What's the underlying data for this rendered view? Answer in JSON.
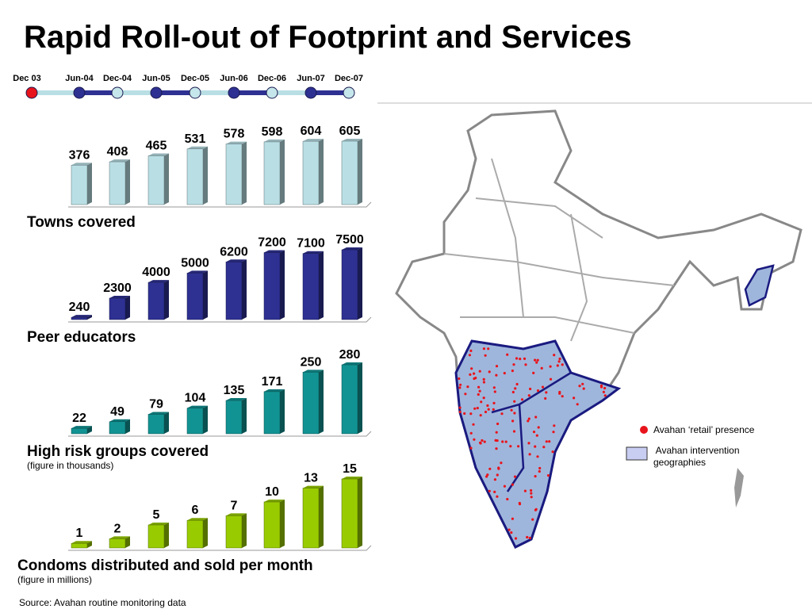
{
  "title": "Rapid Roll-out of Footprint and Services",
  "timeline": {
    "labels": [
      "Dec 03",
      "Jun-04",
      "Dec-04",
      "Jun-05",
      "Dec-05",
      "Jun-06",
      "Dec-06",
      "Jun-07",
      "Dec-07"
    ],
    "point_colors": [
      "#e8141c",
      "#2e3192",
      "#c5e6ea",
      "#2e3192",
      "#c5e6ea",
      "#2e3192",
      "#c5e6ea",
      "#2e3192",
      "#c5e6ea"
    ]
  },
  "chart_data": [
    {
      "type": "bar",
      "title": "Towns covered",
      "values": [
        376,
        408,
        465,
        531,
        578,
        598,
        604,
        605
      ],
      "color": "#b9dfe5"
    },
    {
      "type": "bar",
      "title": "Peer educators",
      "values": [
        240,
        2300,
        4000,
        5000,
        6200,
        7200,
        7100,
        7500
      ],
      "color": "#2e3192"
    },
    {
      "type": "bar",
      "title": "High risk groups covered",
      "subtitle": "(figure in thousands)",
      "values": [
        22,
        49,
        79,
        104,
        135,
        171,
        250,
        280
      ],
      "color": "#129393"
    },
    {
      "type": "bar",
      "title": "Condoms distributed and sold per month",
      "subtitle": "(figure in millions)",
      "values": [
        1,
        2,
        5,
        6,
        7,
        10,
        13,
        15
      ],
      "color": "#99cc00"
    }
  ],
  "legend": {
    "items": [
      {
        "label": "Avahan ‘retail’ presence",
        "color": "#e8141c"
      },
      {
        "lines": [
          " Avahan intervention",
          "geographies"
        ],
        "color": "#c8cdf2"
      }
    ]
  },
  "source": "Source: Avahan routine monitoring data"
}
